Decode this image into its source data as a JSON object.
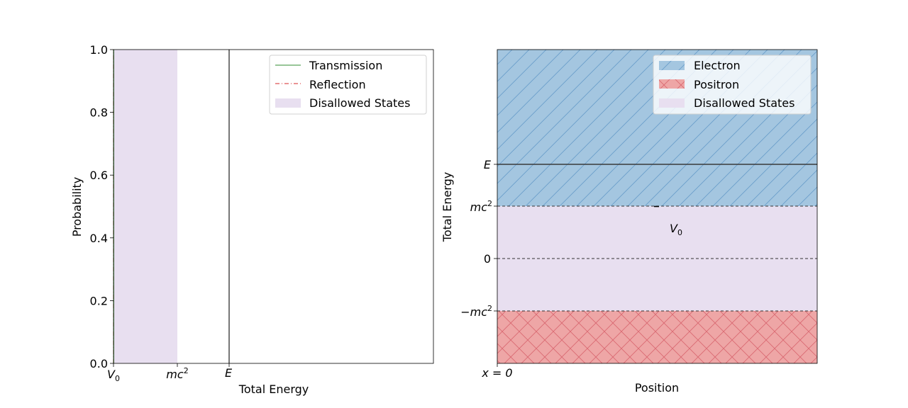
{
  "chart_data": [
    {
      "type": "line",
      "xlabel": "Total Energy",
      "ylabel": "Probability",
      "ylim": [
        0.0,
        1.0
      ],
      "yticks": [
        "0.0",
        "0.2",
        "0.4",
        "0.6",
        "0.8",
        "1.0"
      ],
      "xticks": [
        {
          "sym": "V",
          "sub": "0"
        },
        {
          "sym": "mc",
          "sup": "2"
        },
        {
          "sym": "E"
        }
      ],
      "vline_at": "E",
      "bands": [
        {
          "name": "Disallowed States",
          "from": "V0",
          "to": "mc2",
          "color": "#e8dff0"
        }
      ],
      "series": [
        {
          "name": "Transmission",
          "color": "#5aa55a",
          "style": "solid",
          "values": []
        },
        {
          "name": "Reflection",
          "color": "#d62728",
          "style": "dashdot",
          "values": []
        }
      ],
      "legend": {
        "position": "top-right",
        "entries": [
          {
            "label": "Transmission",
            "kind": "line",
            "color": "#5aa55a",
            "dash": ""
          },
          {
            "label": "Reflection",
            "kind": "line",
            "color": "#d62728",
            "dash": "6 3 1 3"
          },
          {
            "label": "Disallowed States",
            "kind": "patch",
            "color": "#e8dff0"
          }
        ]
      }
    },
    {
      "type": "area",
      "xlabel": "Position",
      "ylabel": "Total Energy",
      "xticks": [
        {
          "text": "x = 0"
        }
      ],
      "yticks": [
        {
          "sym": "E"
        },
        {
          "sym": "mc",
          "sup": "2"
        },
        {
          "sym": "0"
        },
        {
          "sym": "−mc",
          "sup": "2"
        }
      ],
      "annotation": {
        "sym": "V",
        "sub": "0"
      },
      "regions": [
        {
          "name": "Electron",
          "range": [
            "mc2",
            "top"
          ],
          "color": "#a4c6e0",
          "hatch": "diagonal"
        },
        {
          "name": "Disallowed States",
          "range": [
            "-mc2",
            "mc2"
          ],
          "color": "#e8dff0"
        },
        {
          "name": "Positron",
          "range": [
            "bottom",
            "-mc2"
          ],
          "color": "#eea6a6",
          "hatch": "cross"
        }
      ],
      "legend": {
        "position": "top-right",
        "entries": [
          {
            "label": "Electron",
            "kind": "patch",
            "color": "#a4c6e0"
          },
          {
            "label": "Positron",
            "kind": "patch",
            "color": "#eea6a6"
          },
          {
            "label": "Disallowed States",
            "kind": "patch",
            "color": "#e8dff0"
          }
        ]
      }
    }
  ]
}
